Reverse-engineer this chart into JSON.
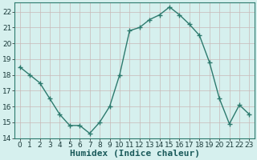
{
  "xlabel": "Humidex (Indice chaleur)",
  "x": [
    0,
    1,
    2,
    3,
    4,
    5,
    6,
    7,
    8,
    9,
    10,
    11,
    12,
    13,
    14,
    15,
    16,
    17,
    18,
    19,
    20,
    21,
    22,
    23
  ],
  "y": [
    18.5,
    18.0,
    17.5,
    16.5,
    15.5,
    14.8,
    14.8,
    14.3,
    15.0,
    16.0,
    18.0,
    20.8,
    21.0,
    21.5,
    21.8,
    22.3,
    21.8,
    21.2,
    20.5,
    18.8,
    16.5,
    14.9,
    16.1,
    15.5
  ],
  "line_color": "#2d7a6e",
  "marker": "+",
  "marker_size": 4,
  "bg_color": "#d6f0ee",
  "grid_color": "#c8b8b8",
  "ylim": [
    14,
    22.6
  ],
  "yticks": [
    14,
    15,
    16,
    17,
    18,
    19,
    20,
    21,
    22
  ],
  "xlim": [
    -0.5,
    23.5
  ],
  "xticks": [
    0,
    1,
    2,
    3,
    4,
    5,
    6,
    7,
    8,
    9,
    10,
    11,
    12,
    13,
    14,
    15,
    16,
    17,
    18,
    19,
    20,
    21,
    22,
    23
  ],
  "xlabel_fontsize": 8,
  "tick_fontsize": 6.5,
  "linewidth": 1.0
}
